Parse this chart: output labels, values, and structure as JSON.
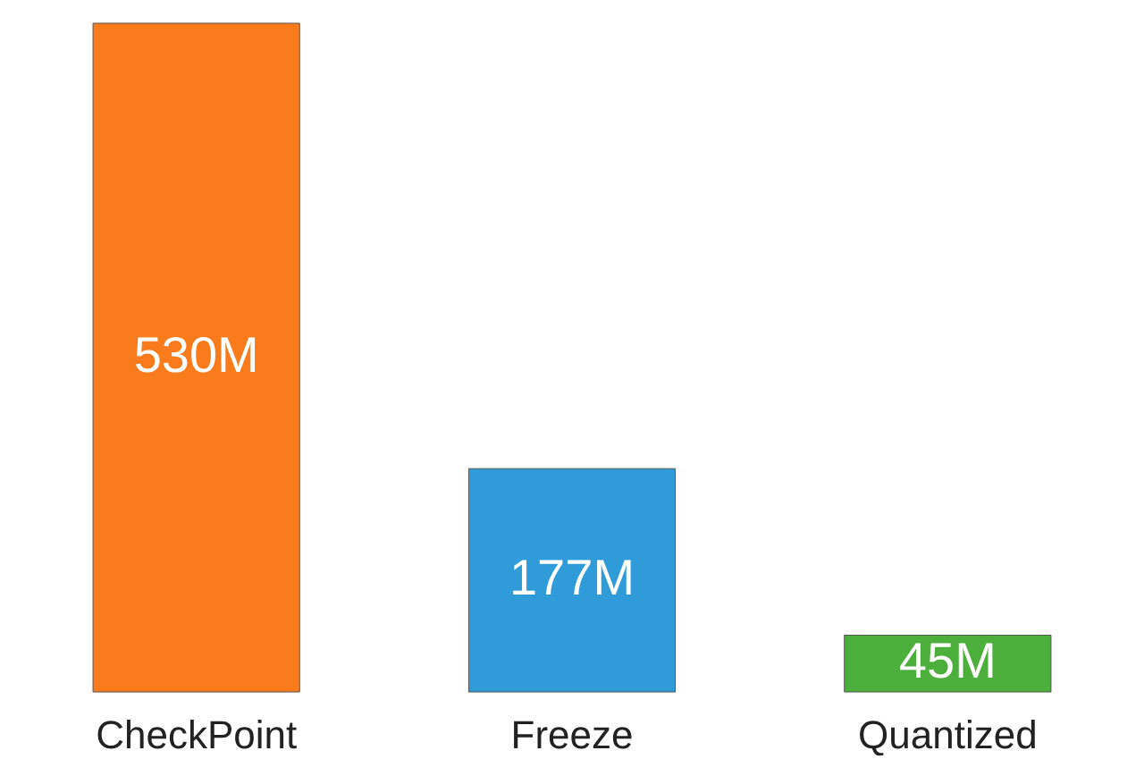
{
  "chart_data": {
    "type": "bar",
    "categories": [
      "CheckPoint",
      "Freeze",
      "Quantized"
    ],
    "values": [
      530,
      177,
      45
    ],
    "value_labels": [
      "530M",
      "177M",
      "45M"
    ],
    "colors": [
      "#f97b1c",
      "#2f9bd9",
      "#4cae3b"
    ],
    "grid": false,
    "legend": false
  }
}
